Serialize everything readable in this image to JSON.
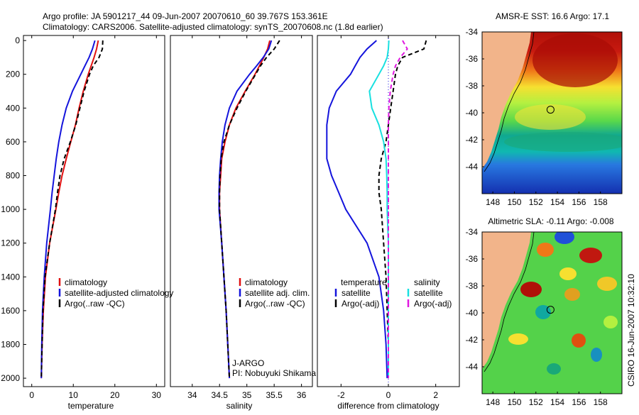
{
  "header": {
    "line1": "Argo profile: JA 5901217_44 09-Jun-2007 20070610_60 39.767S 153.361E",
    "line2": "Climatology: CARS2006. Satellite-adjusted climatology: synTS_20070608.nc (1.8d earlier)"
  },
  "colors": {
    "red": "#e01010",
    "blue": "#1414dc",
    "black": "#000000",
    "cyan": "#18e0e0",
    "magenta": "#e018e0",
    "land": "#f2b48a"
  },
  "side_text": "CSIRO 16-Jun-2007 10:32:10",
  "chart_data": [
    {
      "id": "temperature",
      "type": "line",
      "xlabel": "temperature",
      "ylabel": "",
      "xlim": [
        -2,
        32
      ],
      "ylim": [
        2050,
        -30
      ],
      "xticks": [
        0,
        10,
        20,
        30
      ],
      "yticks": [
        0,
        200,
        400,
        600,
        800,
        1000,
        1200,
        1400,
        1600,
        1800,
        2000
      ],
      "depth": [
        0,
        50,
        100,
        150,
        200,
        300,
        400,
        500,
        600,
        700,
        800,
        900,
        1000,
        1200,
        1400,
        1600,
        1800,
        2000
      ],
      "series": [
        {
          "name": "climatology",
          "color": "#e01010",
          "dash": "",
          "values": [
            16,
            15.6,
            15.0,
            14.3,
            13.6,
            12.4,
            11.4,
            10.5,
            9.4,
            8.3,
            7.3,
            6.5,
            5.8,
            4.3,
            3.3,
            2.8,
            2.5,
            2.3
          ]
        },
        {
          "name": "satellite-adjusted climatology",
          "color": "#1414dc",
          "dash": "",
          "values": [
            15.2,
            14.6,
            13.8,
            12.8,
            11.8,
            9.8,
            8.3,
            7.3,
            6.5,
            5.9,
            5.4,
            4.9,
            4.5,
            3.6,
            3.0,
            2.6,
            2.4,
            2.3
          ]
        },
        {
          "name": "Argo(..raw -QC)",
          "color": "#000000",
          "dash": "6,4",
          "values": [
            17.1,
            17.0,
            16.2,
            14.8,
            13.9,
            12.6,
            11.6,
            10.6,
            9.3,
            7.8,
            6.8,
            6.2,
            5.7,
            4.3,
            3.2,
            2.7,
            2.5,
            2.3
          ]
        }
      ],
      "legend": [
        "climatology",
        "satellite-adjusted climatology",
        "Argo(..raw -QC)"
      ]
    },
    {
      "id": "salinity",
      "type": "line",
      "xlabel": "salinity",
      "ylabel": "",
      "xlim": [
        33.6,
        36.2
      ],
      "ylim": [
        2050,
        -30
      ],
      "xticks": [
        34,
        34.5,
        35,
        35.5,
        36
      ],
      "yticks": [],
      "depth": [
        0,
        50,
        100,
        150,
        200,
        300,
        400,
        500,
        600,
        700,
        800,
        900,
        1000,
        1200,
        1400,
        1600,
        1800,
        2000
      ],
      "series": [
        {
          "name": "climatology",
          "color": "#e01010",
          "dash": "",
          "values": [
            35.42,
            35.38,
            35.31,
            35.23,
            35.15,
            34.97,
            34.8,
            34.68,
            34.6,
            34.54,
            34.52,
            34.5,
            34.5,
            34.54,
            34.58,
            34.62,
            34.65,
            34.68
          ]
        },
        {
          "name": "satellite adj. clim.",
          "color": "#1414dc",
          "dash": "",
          "values": [
            35.45,
            35.4,
            35.3,
            35.18,
            35.05,
            34.82,
            34.68,
            34.6,
            34.55,
            34.52,
            34.5,
            34.49,
            34.49,
            34.54,
            34.58,
            34.62,
            34.65,
            34.68
          ]
        },
        {
          "name": "Argo(..raw -QC)",
          "color": "#000000",
          "dash": "6,4",
          "values": [
            35.6,
            35.5,
            35.36,
            35.25,
            35.16,
            34.98,
            34.82,
            34.68,
            34.58,
            34.53,
            34.51,
            34.5,
            34.5,
            34.54,
            34.58,
            34.62,
            34.65,
            34.68
          ]
        }
      ],
      "legend": [
        "climatology",
        "satellite adj. clim.",
        "Argo(..raw -QC)"
      ],
      "annotation": [
        "J-ARGO",
        "PI: Nobuyuki Shikama"
      ]
    },
    {
      "id": "difference",
      "type": "line",
      "xlabel": "difference from climatology",
      "ylabel": "",
      "xlim": [
        -3,
        3
      ],
      "ylim": [
        2050,
        -30
      ],
      "xticks": [
        -2,
        0,
        2
      ],
      "yticks": [],
      "depth": [
        0,
        50,
        100,
        150,
        200,
        300,
        400,
        500,
        600,
        700,
        800,
        900,
        1000,
        1200,
        1400,
        1600,
        1800,
        2000
      ],
      "series": [
        {
          "name": "temperature satellite",
          "color": "#1414dc",
          "dash": "",
          "values": [
            -0.5,
            -0.9,
            -1.2,
            -1.4,
            -1.6,
            -2.2,
            -2.5,
            -2.6,
            -2.6,
            -2.6,
            -2.4,
            -2.1,
            -1.8,
            -0.9,
            -0.4,
            -0.2,
            -0.1,
            -0.05
          ]
        },
        {
          "name": "temperature Argo(-adj)",
          "color": "#000000",
          "dash": "6,4",
          "values": [
            1.6,
            1.5,
            0.6,
            0.4,
            0.3,
            0.2,
            0.1,
            0.0,
            -0.1,
            -0.3,
            -0.4,
            -0.4,
            -0.3,
            -0.2,
            -0.1,
            -0.05,
            0,
            0
          ]
        },
        {
          "name": "salinity satellite",
          "color": "#18e0e0",
          "dash": "",
          "values": [
            0.02,
            0.0,
            -0.05,
            -0.2,
            -0.4,
            -0.8,
            -0.7,
            -0.4,
            -0.2,
            -0.1,
            -0.07,
            -0.05,
            -0.05,
            0,
            0,
            0,
            0,
            0
          ]
        },
        {
          "name": "salinity Argo(-adj)",
          "color": "#e018e0",
          "dash": "6,4",
          "values": [
            0.6,
            0.8,
            0.5,
            0.3,
            0.2,
            0.08,
            0.02,
            0,
            0,
            0,
            0,
            0,
            0,
            0,
            0,
            0,
            0,
            0
          ]
        }
      ],
      "legend": {
        "temperature_title": "temperature",
        "salinity_title": "salinity",
        "labels": [
          "satellite",
          "Argo(-adj)",
          "satellite",
          "Argo(-adj)"
        ]
      }
    },
    {
      "id": "sst_map",
      "type": "heatmap",
      "title": "AMSR-E SST: 16.6 Argo: 17.1",
      "xlim": [
        147,
        160
      ],
      "ylim": [
        -46,
        -34
      ],
      "xticks": [
        148,
        150,
        152,
        154,
        156,
        158
      ],
      "yticks": [
        -34,
        -36,
        -38,
        -40,
        -42,
        -44
      ],
      "float": {
        "lon": 153.361,
        "lat": -39.767
      }
    },
    {
      "id": "sla_map",
      "type": "heatmap",
      "title": "Altimetric SLA: -0.11 Argo: -0.008",
      "xlim": [
        147,
        160
      ],
      "ylim": [
        -46,
        -34
      ],
      "xticks": [
        148,
        150,
        152,
        154,
        156,
        158
      ],
      "yticks": [
        -34,
        -36,
        -38,
        -40,
        -42,
        -44
      ],
      "float": {
        "lon": 153.361,
        "lat": -39.767
      }
    }
  ]
}
